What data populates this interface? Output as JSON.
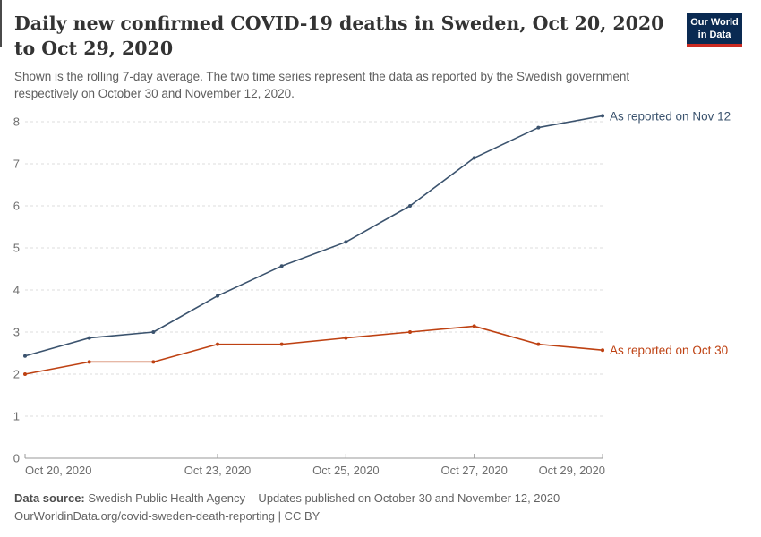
{
  "header": {
    "title": "Daily new confirmed COVID-19 deaths in Sweden, Oct 20, 2020 to Oct 29, 2020",
    "subtitle": "Shown is the rolling 7-day average. The two time series represent the data as reported by the Swedish government respectively on October 30 and November 12, 2020.",
    "logo": {
      "line1": "Our World",
      "line2": "in Data",
      "bg_color": "#0a2a52",
      "accent_color": "#cb2a21"
    }
  },
  "chart_data": {
    "type": "line",
    "title": "Daily new confirmed COVID-19 deaths in Sweden, Oct 20, 2020 to Oct 29, 2020",
    "x": [
      "Oct 20, 2020",
      "Oct 21, 2020",
      "Oct 22, 2020",
      "Oct 23, 2020",
      "Oct 24, 2020",
      "Oct 25, 2020",
      "Oct 26, 2020",
      "Oct 27, 2020",
      "Oct 28, 2020",
      "Oct 29, 2020"
    ],
    "series": [
      {
        "name": "As reported on Nov 12",
        "color": "#3b536e",
        "values": [
          2.43,
          2.86,
          3.0,
          3.86,
          4.57,
          5.14,
          6.0,
          7.14,
          7.86,
          8.14
        ]
      },
      {
        "name": "As reported on Oct 30",
        "color": "#be4112",
        "values": [
          2.0,
          2.29,
          2.29,
          2.71,
          2.71,
          2.86,
          3.0,
          3.14,
          2.71,
          2.57
        ]
      }
    ],
    "xlabel": "",
    "ylabel": "",
    "ylim": [
      0,
      8.5
    ],
    "yticks": [
      0,
      1,
      2,
      3,
      4,
      5,
      6,
      7,
      8
    ],
    "xticks": {
      "indices": [
        0,
        3,
        5,
        7,
        9
      ],
      "labels": [
        "Oct 20, 2020",
        "Oct 23, 2020",
        "Oct 25, 2020",
        "Oct 27, 2020",
        "Oct 29, 2020"
      ]
    },
    "grid": "horizontal-dashed",
    "legend_position": "line-end-labels",
    "style": {
      "grid_color": "#dedede",
      "axis_color": "#999999",
      "tick_text_color": "#6e6e6e"
    }
  },
  "footer": {
    "data_source_label": "Data source:",
    "data_source_text": "Swedish Public Health Agency – Updates published on October 30 and November 12, 2020",
    "link_line": "OurWorldinData.org/covid-sweden-death-reporting | CC BY"
  }
}
